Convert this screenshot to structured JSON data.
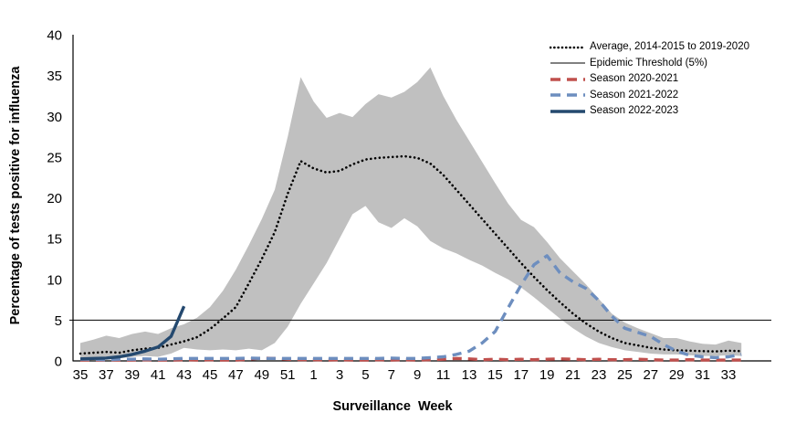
{
  "window": {
    "background": "#FFFFFF"
  },
  "y_axis": {
    "title": "Percentage of tests positive for influenza",
    "min": 0,
    "max": 40,
    "ticks": [
      0,
      5,
      10,
      15,
      20,
      25,
      30,
      35,
      40
    ]
  },
  "x_axis": {
    "title": "Surveillance  Week",
    "tick_labels": [
      "35",
      "37",
      "39",
      "41",
      "43",
      "45",
      "47",
      "49",
      "51",
      "1",
      "3",
      "5",
      "7",
      "9",
      "11",
      "13",
      "15",
      "17",
      "19",
      "21",
      "23",
      "25",
      "27",
      "29",
      "31",
      "33"
    ]
  },
  "chart_data": {
    "type": "line",
    "ylim": [
      0,
      40
    ],
    "grid": false,
    "legend_position": "top-right",
    "x_weeks": [
      35,
      36,
      37,
      38,
      39,
      40,
      41,
      42,
      43,
      44,
      45,
      46,
      47,
      48,
      49,
      50,
      51,
      52,
      1,
      2,
      3,
      4,
      5,
      6,
      7,
      8,
      9,
      10,
      11,
      12,
      13,
      14,
      15,
      16,
      17,
      18,
      19,
      20,
      21,
      22,
      23,
      24,
      25,
      26,
      27,
      28,
      29,
      30,
      31,
      32,
      33,
      34
    ],
    "band": {
      "color": "#C0C0C0",
      "upper": [
        2.2,
        2.6,
        3.1,
        2.8,
        3.3,
        3.6,
        3.3,
        4.0,
        4.5,
        5.3,
        6.6,
        8.6,
        11.2,
        14.2,
        17.4,
        21.0,
        27.5,
        34.8,
        31.8,
        29.8,
        30.4,
        29.9,
        31.5,
        32.7,
        32.3,
        33.0,
        34.2,
        36.0,
        32.5,
        29.6,
        27.0,
        24.4,
        21.8,
        19.3,
        17.3,
        16.4,
        14.6,
        12.6,
        11.0,
        9.4,
        7.6,
        5.8,
        4.7,
        4.0,
        3.4,
        2.8,
        2.8,
        2.4,
        2.1,
        2.0,
        2.5,
        2.2
      ],
      "lower": [
        0.3,
        0.4,
        0.4,
        0.3,
        0.5,
        0.6,
        0.5,
        0.9,
        1.6,
        1.4,
        1.3,
        1.4,
        1.3,
        1.5,
        1.3,
        2.2,
        4.2,
        7.0,
        9.5,
        12.0,
        15.0,
        18.0,
        19.0,
        17.0,
        16.3,
        17.5,
        16.5,
        14.7,
        13.8,
        13.2,
        12.4,
        11.7,
        10.8,
        10.0,
        9.0,
        7.8,
        6.5,
        5.2,
        4.0,
        3.0,
        2.2,
        1.7,
        1.3,
        1.1,
        0.9,
        0.8,
        0.8,
        0.7,
        0.6,
        0.6,
        0.7,
        0.6
      ]
    },
    "series": [
      {
        "name": "Average, 2014-2015 to 2019-2020",
        "style": "dotted",
        "color": "#000000",
        "values": [
          0.9,
          1.0,
          1.1,
          1.0,
          1.3,
          1.5,
          1.6,
          2.0,
          2.4,
          2.9,
          3.9,
          5.2,
          6.6,
          9.5,
          12.5,
          15.8,
          20.5,
          24.5,
          23.6,
          23.1,
          23.3,
          24.1,
          24.7,
          24.9,
          25.0,
          25.1,
          24.9,
          24.2,
          22.8,
          21.0,
          19.2,
          17.4,
          15.6,
          13.8,
          12.0,
          10.3,
          8.7,
          7.2,
          5.8,
          4.6,
          3.6,
          2.8,
          2.2,
          1.9,
          1.6,
          1.4,
          1.3,
          1.25,
          1.2,
          1.15,
          1.25,
          1.2
        ]
      },
      {
        "name": "Epidemic Threshold (5%)",
        "style": "solid-thin",
        "color": "#000000",
        "threshold_value": 5
      },
      {
        "name": "Season 2020-2021",
        "style": "dashed",
        "color": "#C0504D",
        "values": [
          0.1,
          0.1,
          0.1,
          0.1,
          0.1,
          0.15,
          0.1,
          0.1,
          0.15,
          0.1,
          0.15,
          0.1,
          0.1,
          0.2,
          0.35,
          0.3,
          0.2,
          0.15,
          0.15,
          0.1,
          0.15,
          0.1,
          0.1,
          0.15,
          0.1,
          0.15,
          0.1,
          0.15,
          0.2,
          0.3,
          0.25,
          0.15,
          0.2,
          0.15,
          0.2,
          0.15,
          0.2,
          0.25,
          0.2,
          0.15,
          0.2,
          0.15,
          0.15,
          0.2,
          0.15,
          0.1,
          0.1,
          0.15,
          0.1,
          0.1,
          0.1,
          0.1
        ]
      },
      {
        "name": "Season 2021-2022",
        "style": "dashed",
        "color": "#6D8EBF",
        "values": [
          0.2,
          0.2,
          0.15,
          0.2,
          0.2,
          0.25,
          0.2,
          0.25,
          0.3,
          0.3,
          0.3,
          0.3,
          0.3,
          0.35,
          0.3,
          0.3,
          0.3,
          0.3,
          0.3,
          0.3,
          0.3,
          0.3,
          0.3,
          0.3,
          0.35,
          0.3,
          0.3,
          0.4,
          0.5,
          0.8,
          1.2,
          2.2,
          3.6,
          6.5,
          9.3,
          11.8,
          12.9,
          10.8,
          9.7,
          8.9,
          7.4,
          5.5,
          4.0,
          3.5,
          3.0,
          2.0,
          1.2,
          0.7,
          0.5,
          0.4,
          0.5,
          0.8
        ]
      },
      {
        "name": "Season 2022-2023",
        "style": "solid",
        "color": "#24496F",
        "values": [
          0.25,
          0.3,
          0.35,
          0.5,
          0.8,
          1.2,
          1.7,
          3.0,
          6.7
        ]
      }
    ]
  }
}
